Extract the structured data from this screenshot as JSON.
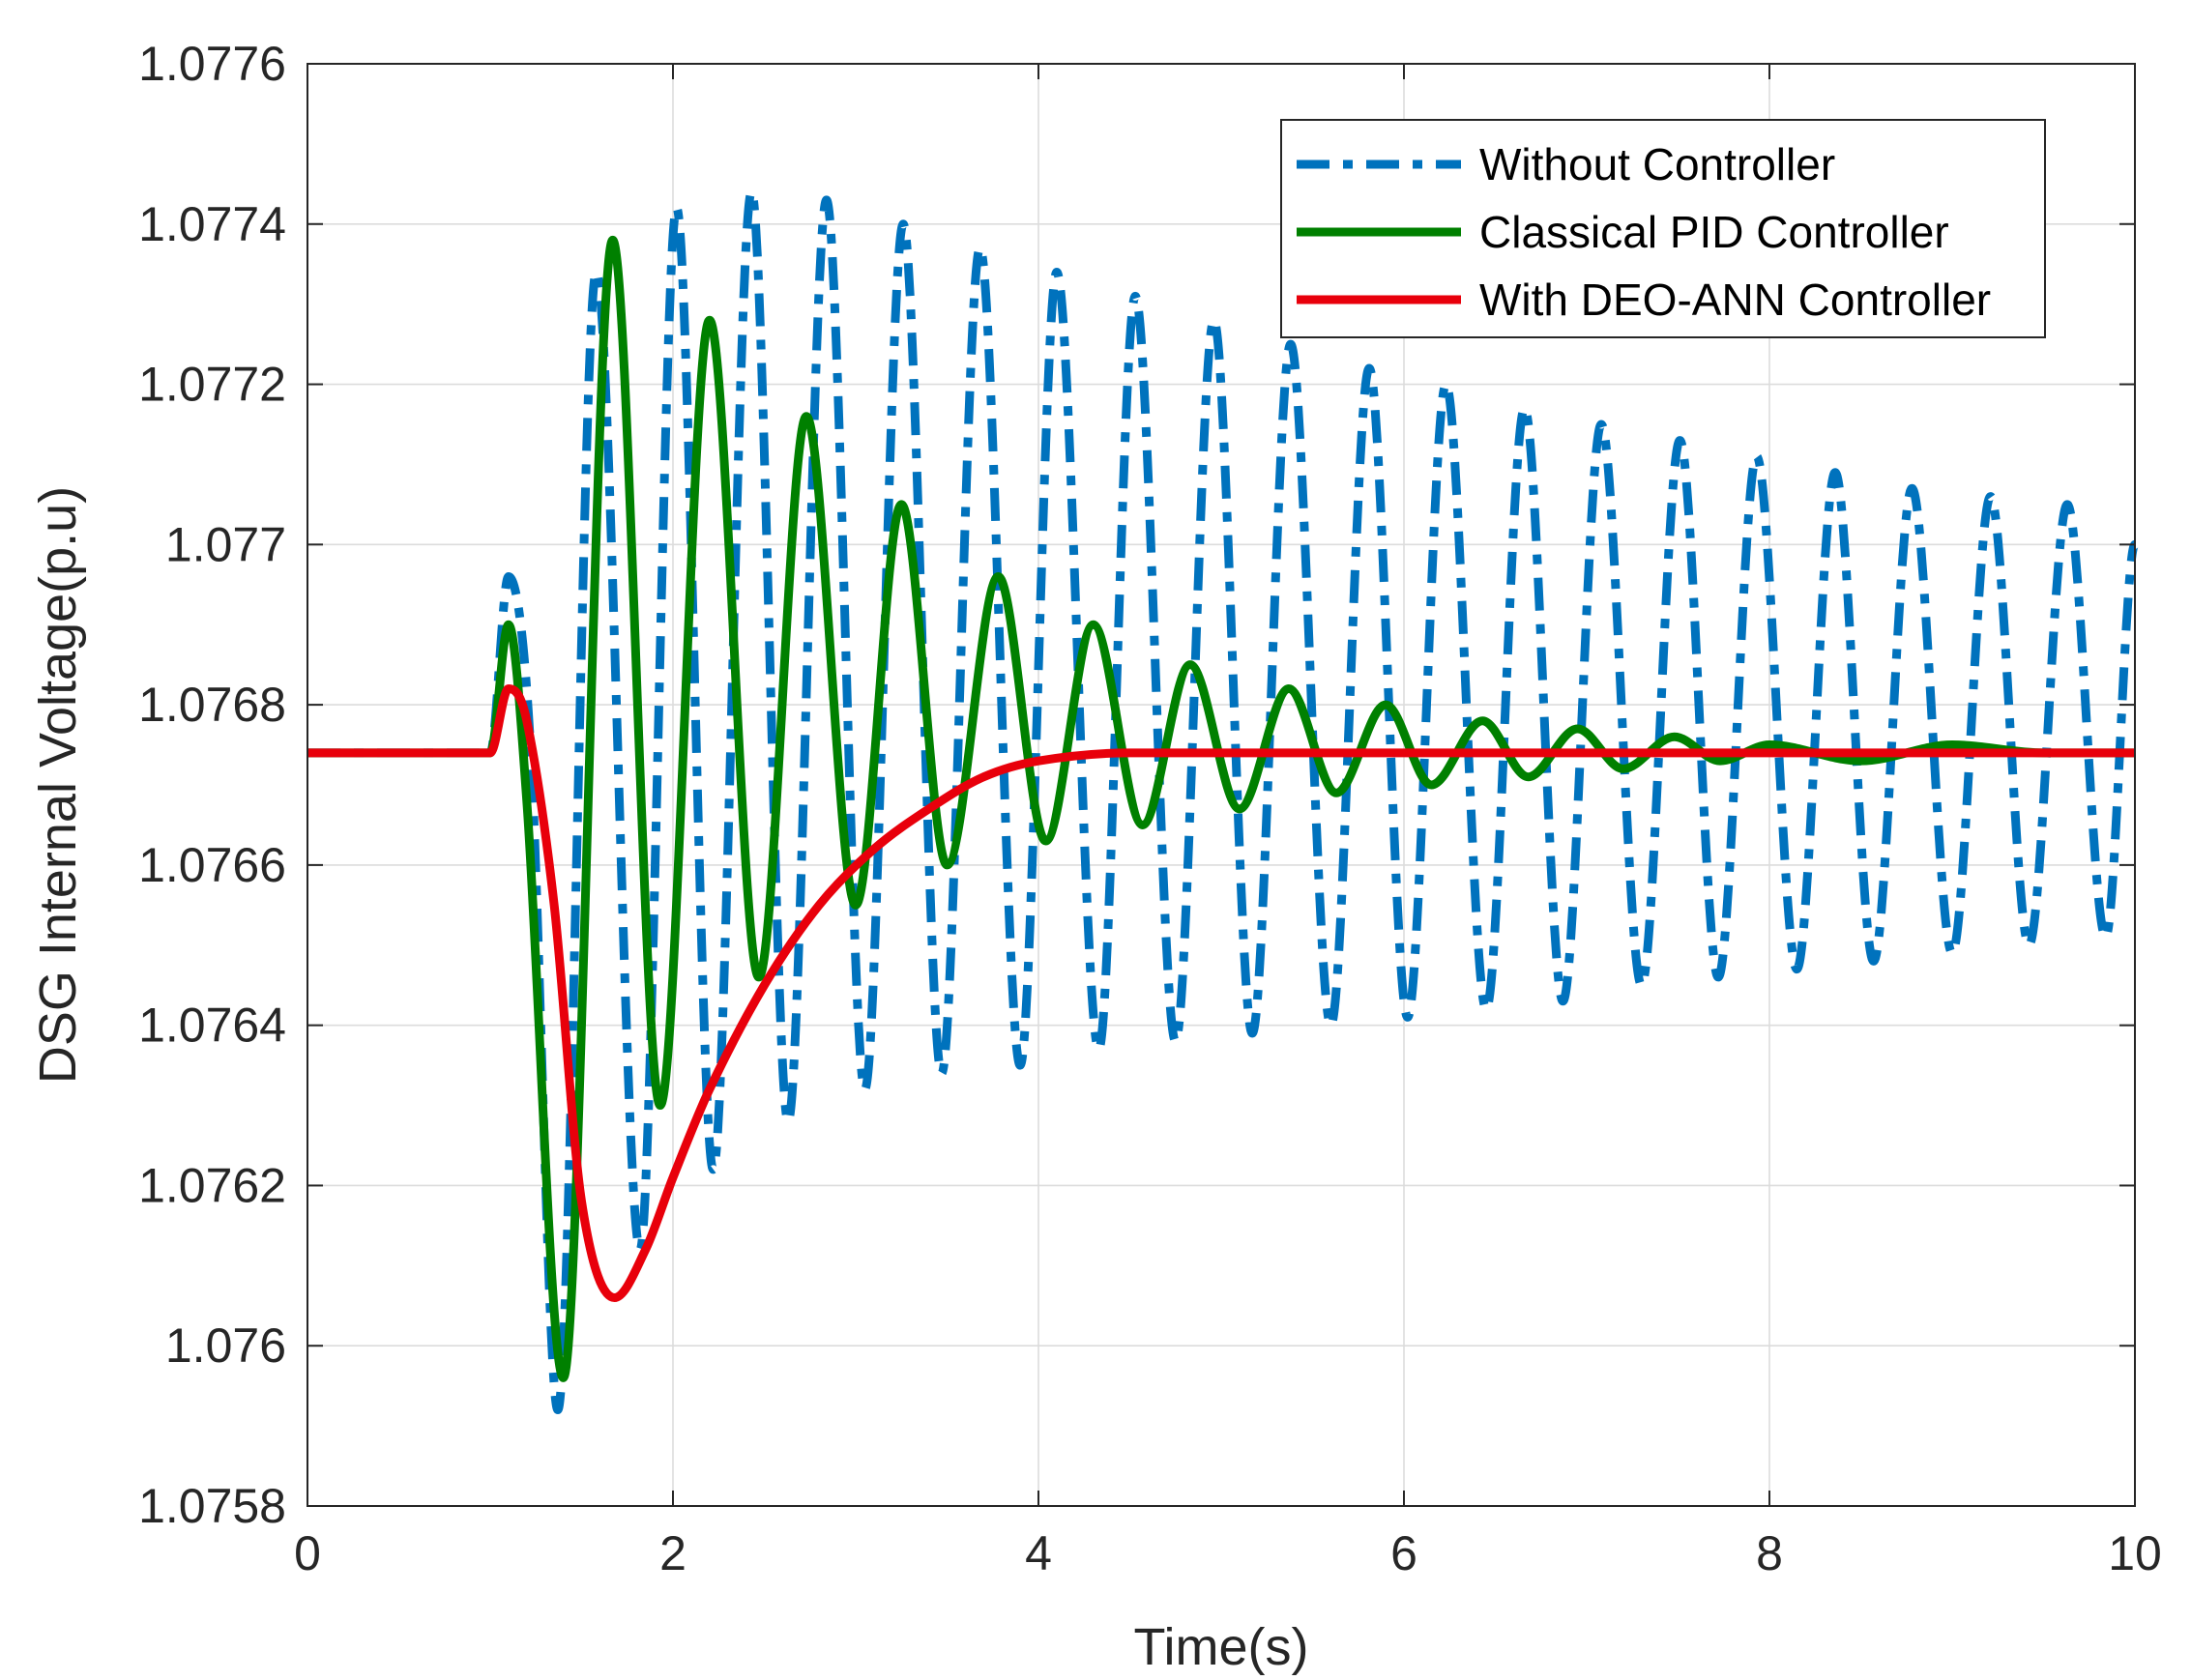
{
  "chart_data": {
    "type": "line",
    "title": "",
    "xlabel": "Time(s)",
    "ylabel": "DSG Internal Voltage(p.u)",
    "xlim": [
      0,
      10
    ],
    "ylim": [
      1.0758,
      1.0776
    ],
    "xticks": [
      0,
      2,
      4,
      6,
      8,
      10
    ],
    "xtick_labels": [
      "0",
      "2",
      "4",
      "6",
      "8",
      "10"
    ],
    "yticks": [
      1.0758,
      1.076,
      1.0762,
      1.0764,
      1.0766,
      1.0768,
      1.077,
      1.0772,
      1.0774,
      1.0776
    ],
    "ytick_labels": [
      "1.0758",
      "1.076",
      "1.0762",
      "1.0764",
      "1.0766",
      "1.0768",
      "1.077",
      "1.0772",
      "1.0774",
      "1.0776"
    ],
    "grid": true,
    "legend_position": "top-right",
    "series": [
      {
        "name": "Without Controller",
        "color": "#0072BD",
        "style": "dash-dot",
        "points": [
          [
            0,
            1.07674
          ],
          [
            1.0,
            1.07674
          ],
          [
            1.1,
            1.07696
          ],
          [
            1.22,
            1.07675
          ],
          [
            1.37,
            1.07592
          ],
          [
            1.58,
            1.07734
          ],
          [
            1.82,
            1.07612
          ],
          [
            2.02,
            1.07742
          ],
          [
            2.22,
            1.07622
          ],
          [
            2.43,
            1.07744
          ],
          [
            2.63,
            1.07628
          ],
          [
            2.84,
            1.07743
          ],
          [
            3.05,
            1.07632
          ],
          [
            3.26,
            1.0774
          ],
          [
            3.47,
            1.07634
          ],
          [
            3.68,
            1.07737
          ],
          [
            3.9,
            1.07635
          ],
          [
            4.1,
            1.07734
          ],
          [
            4.33,
            1.07637
          ],
          [
            4.53,
            1.07731
          ],
          [
            4.75,
            1.07638
          ],
          [
            4.96,
            1.07728
          ],
          [
            5.17,
            1.07639
          ],
          [
            5.38,
            1.07725
          ],
          [
            5.6,
            1.0764
          ],
          [
            5.81,
            1.07722
          ],
          [
            6.02,
            1.07641
          ],
          [
            6.23,
            1.0772
          ],
          [
            6.45,
            1.07642
          ],
          [
            6.66,
            1.07717
          ],
          [
            6.87,
            1.07643
          ],
          [
            7.08,
            1.07715
          ],
          [
            7.3,
            1.07645
          ],
          [
            7.51,
            1.07713
          ],
          [
            7.72,
            1.07646
          ],
          [
            7.93,
            1.07711
          ],
          [
            8.15,
            1.07647
          ],
          [
            8.36,
            1.07709
          ],
          [
            8.57,
            1.07648
          ],
          [
            8.78,
            1.07707
          ],
          [
            9.0,
            1.07649
          ],
          [
            9.21,
            1.07706
          ],
          [
            9.42,
            1.0765
          ],
          [
            9.63,
            1.07705
          ],
          [
            9.84,
            1.07651
          ],
          [
            10.0,
            1.077
          ]
        ]
      },
      {
        "name": "Classical PID Controller",
        "color": "#008000",
        "style": "solid",
        "points": [
          [
            0,
            1.07674
          ],
          [
            1.0,
            1.07674
          ],
          [
            1.1,
            1.0769
          ],
          [
            1.2,
            1.07668
          ],
          [
            1.4,
            1.07596
          ],
          [
            1.67,
            1.07738
          ],
          [
            1.93,
            1.0763
          ],
          [
            2.2,
            1.07728
          ],
          [
            2.47,
            1.07646
          ],
          [
            2.73,
            1.07716
          ],
          [
            3.0,
            1.07655
          ],
          [
            3.25,
            1.07705
          ],
          [
            3.5,
            1.0766
          ],
          [
            3.78,
            1.07696
          ],
          [
            4.04,
            1.07663
          ],
          [
            4.3,
            1.0769
          ],
          [
            4.57,
            1.07665
          ],
          [
            4.83,
            1.07685
          ],
          [
            5.1,
            1.07667
          ],
          [
            5.37,
            1.07682
          ],
          [
            5.63,
            1.07669
          ],
          [
            5.9,
            1.0768
          ],
          [
            6.15,
            1.0767
          ],
          [
            6.43,
            1.07678
          ],
          [
            6.68,
            1.07671
          ],
          [
            6.95,
            1.07677
          ],
          [
            7.2,
            1.07672
          ],
          [
            7.48,
            1.07676
          ],
          [
            7.73,
            1.07673
          ],
          [
            8.0,
            1.07675
          ],
          [
            8.5,
            1.07673
          ],
          [
            9.0,
            1.07675
          ],
          [
            9.5,
            1.07674
          ],
          [
            10.0,
            1.07674
          ]
        ]
      },
      {
        "name": "With DEO-ANN Controller",
        "color": "#E8000B",
        "style": "solid",
        "points": [
          [
            0,
            1.07674
          ],
          [
            1.0,
            1.07674
          ],
          [
            1.1,
            1.07682
          ],
          [
            1.2,
            1.07678
          ],
          [
            1.35,
            1.07655
          ],
          [
            1.5,
            1.07618
          ],
          [
            1.68,
            1.07606
          ],
          [
            1.85,
            1.07612
          ],
          [
            2.0,
            1.07621
          ],
          [
            2.2,
            1.07632
          ],
          [
            2.5,
            1.07645
          ],
          [
            2.8,
            1.07655
          ],
          [
            3.1,
            1.07662
          ],
          [
            3.4,
            1.07667
          ],
          [
            3.7,
            1.07671
          ],
          [
            4.0,
            1.07673
          ],
          [
            4.5,
            1.07674
          ],
          [
            10.0,
            1.07674
          ]
        ]
      }
    ]
  }
}
